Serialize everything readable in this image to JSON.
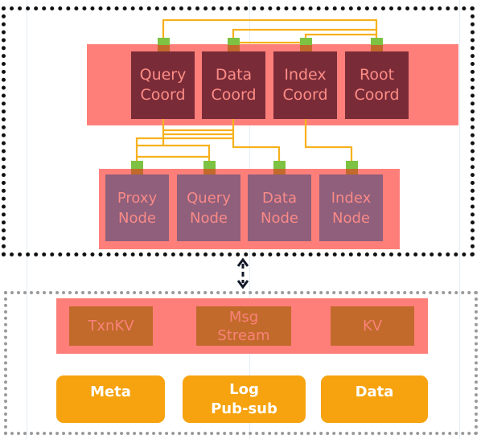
{
  "coordinators": [
    {
      "label": "Query\nCoord"
    },
    {
      "label": "Data\nCoord"
    },
    {
      "label": "Index\nCoord"
    },
    {
      "label": "Root\nCoord"
    }
  ],
  "nodes": [
    {
      "label": "Proxy\nNode"
    },
    {
      "label": "Query\nNode"
    },
    {
      "label": "Data\nNode"
    },
    {
      "label": "Index\nNode"
    }
  ],
  "storage_layers": [
    {
      "label": "TxnKV"
    },
    {
      "label": "Msg\nStream"
    },
    {
      "label": "KV"
    }
  ],
  "storage_backends": [
    {
      "label": "Meta"
    },
    {
      "label": "Log\nPub-sub"
    },
    {
      "label": "Data"
    }
  ],
  "colors": {
    "band": "#fe7f7a",
    "coord": "#7a2b38",
    "node": "#8f5f7c",
    "store": "#c26a2b",
    "backend": "#f6a30f",
    "connector": "#7dc242",
    "link": "#f7b11c"
  }
}
